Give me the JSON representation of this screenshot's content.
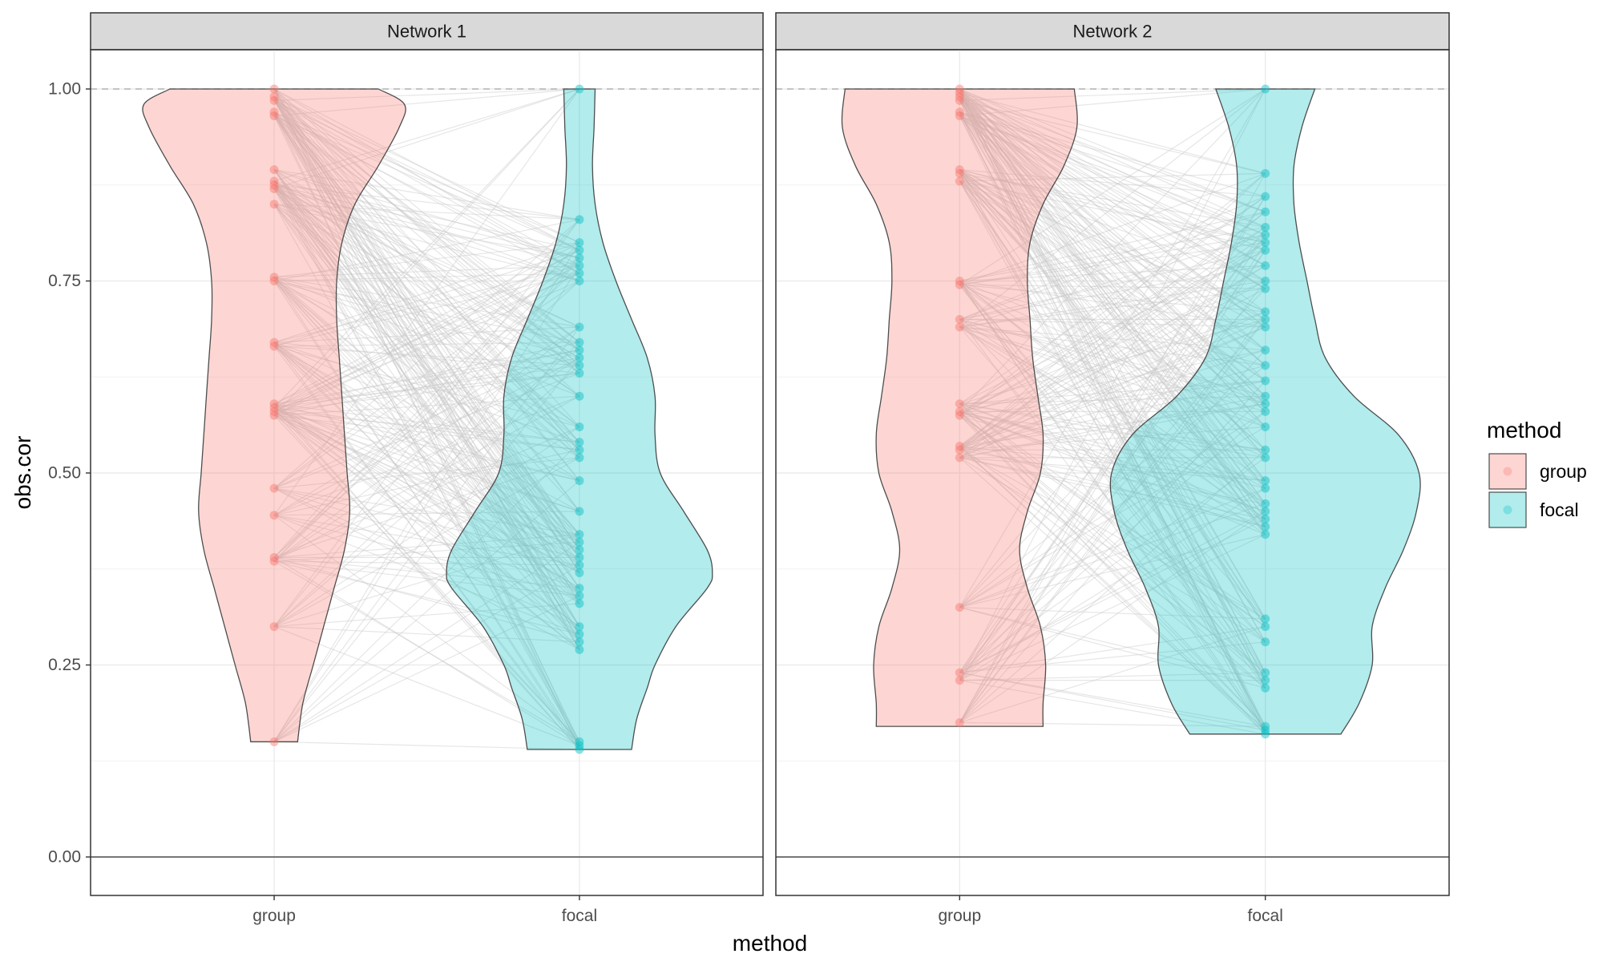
{
  "chart_data": {
    "type": "violin",
    "xlabel": "method",
    "ylabel": "obs.cor",
    "ylim": [
      0,
      1
    ],
    "y_ticks": [
      "0.00",
      "0.25",
      "0.50",
      "0.75",
      "1.00"
    ],
    "categories": [
      "group",
      "focal"
    ],
    "reference_line": 1.0,
    "grid": true,
    "legend": {
      "title": "method",
      "placement": "right",
      "items": [
        {
          "label": "group",
          "color": "#F8766D"
        },
        {
          "label": "focal",
          "color": "#00BFC4"
        }
      ]
    },
    "colors": {
      "group": "#F8766D",
      "focal": "#00BFC4"
    },
    "panels": [
      {
        "title": "Network 1",
        "group": {
          "points": [
            1.0,
            0.99,
            0.985,
            0.97,
            0.965,
            0.895,
            0.88,
            0.875,
            0.87,
            0.85,
            0.755,
            0.75,
            0.67,
            0.665,
            0.59,
            0.585,
            0.58,
            0.575,
            0.48,
            0.445,
            0.39,
            0.385,
            0.3,
            0.15
          ],
          "violin": [
            [
              0.15,
              0.045
            ],
            [
              0.2,
              0.055
            ],
            [
              0.25,
              0.075
            ],
            [
              0.3,
              0.095
            ],
            [
              0.35,
              0.115
            ],
            [
              0.4,
              0.135
            ],
            [
              0.45,
              0.145
            ],
            [
              0.5,
              0.14
            ],
            [
              0.55,
              0.135
            ],
            [
              0.6,
              0.13
            ],
            [
              0.65,
              0.125
            ],
            [
              0.7,
              0.12
            ],
            [
              0.75,
              0.12
            ],
            [
              0.8,
              0.13
            ],
            [
              0.85,
              0.155
            ],
            [
              0.9,
              0.2
            ],
            [
              0.95,
              0.24
            ],
            [
              0.98,
              0.25
            ],
            [
              1.0,
              0.2
            ]
          ]
        },
        "focal": {
          "points": [
            1.0,
            0.83,
            0.8,
            0.79,
            0.78,
            0.77,
            0.76,
            0.75,
            0.69,
            0.67,
            0.66,
            0.65,
            0.64,
            0.63,
            0.6,
            0.56,
            0.54,
            0.53,
            0.52,
            0.49,
            0.45,
            0.42,
            0.41,
            0.4,
            0.39,
            0.38,
            0.37,
            0.35,
            0.34,
            0.33,
            0.3,
            0.29,
            0.28,
            0.27,
            0.15,
            0.145,
            0.14
          ],
          "violin": [
            [
              0.14,
              0.1
            ],
            [
              0.18,
              0.11
            ],
            [
              0.22,
              0.13
            ],
            [
              0.25,
              0.145
            ],
            [
              0.3,
              0.185
            ],
            [
              0.35,
              0.245
            ],
            [
              0.37,
              0.255
            ],
            [
              0.4,
              0.245
            ],
            [
              0.45,
              0.2
            ],
            [
              0.5,
              0.155
            ],
            [
              0.55,
              0.145
            ],
            [
              0.6,
              0.145
            ],
            [
              0.65,
              0.13
            ],
            [
              0.7,
              0.1
            ],
            [
              0.75,
              0.07
            ],
            [
              0.8,
              0.045
            ],
            [
              0.85,
              0.03
            ],
            [
              0.9,
              0.025
            ],
            [
              0.95,
              0.028
            ],
            [
              1.0,
              0.03
            ]
          ]
        }
      },
      {
        "title": "Network 2",
        "group": {
          "points": [
            1.0,
            0.995,
            0.99,
            0.985,
            0.97,
            0.965,
            0.895,
            0.89,
            0.88,
            0.75,
            0.745,
            0.7,
            0.69,
            0.59,
            0.58,
            0.575,
            0.535,
            0.53,
            0.52,
            0.325,
            0.24,
            0.23,
            0.175
          ],
          "violin": [
            [
              0.17,
              0.16
            ],
            [
              0.2,
              0.16
            ],
            [
              0.25,
              0.165
            ],
            [
              0.3,
              0.155
            ],
            [
              0.35,
              0.13
            ],
            [
              0.4,
              0.115
            ],
            [
              0.45,
              0.13
            ],
            [
              0.5,
              0.155
            ],
            [
              0.55,
              0.16
            ],
            [
              0.6,
              0.15
            ],
            [
              0.65,
              0.14
            ],
            [
              0.7,
              0.135
            ],
            [
              0.75,
              0.13
            ],
            [
              0.8,
              0.135
            ],
            [
              0.85,
              0.16
            ],
            [
              0.9,
              0.2
            ],
            [
              0.95,
              0.225
            ],
            [
              1.0,
              0.22
            ]
          ]
        },
        "focal": {
          "points": [
            1.0,
            0.89,
            0.86,
            0.84,
            0.82,
            0.81,
            0.8,
            0.79,
            0.77,
            0.75,
            0.74,
            0.71,
            0.7,
            0.69,
            0.66,
            0.64,
            0.62,
            0.6,
            0.59,
            0.58,
            0.56,
            0.53,
            0.52,
            0.49,
            0.48,
            0.46,
            0.45,
            0.44,
            0.43,
            0.42,
            0.31,
            0.3,
            0.28,
            0.24,
            0.23,
            0.22,
            0.17,
            0.165,
            0.16
          ],
          "violin": [
            [
              0.16,
              0.145
            ],
            [
              0.2,
              0.18
            ],
            [
              0.25,
              0.205
            ],
            [
              0.3,
              0.205
            ],
            [
              0.35,
              0.23
            ],
            [
              0.4,
              0.265
            ],
            [
              0.45,
              0.29
            ],
            [
              0.5,
              0.295
            ],
            [
              0.55,
              0.255
            ],
            [
              0.6,
              0.17
            ],
            [
              0.65,
              0.115
            ],
            [
              0.7,
              0.095
            ],
            [
              0.75,
              0.08
            ],
            [
              0.8,
              0.065
            ],
            [
              0.85,
              0.055
            ],
            [
              0.9,
              0.055
            ],
            [
              0.95,
              0.07
            ],
            [
              1.0,
              0.095
            ]
          ]
        }
      }
    ]
  }
}
